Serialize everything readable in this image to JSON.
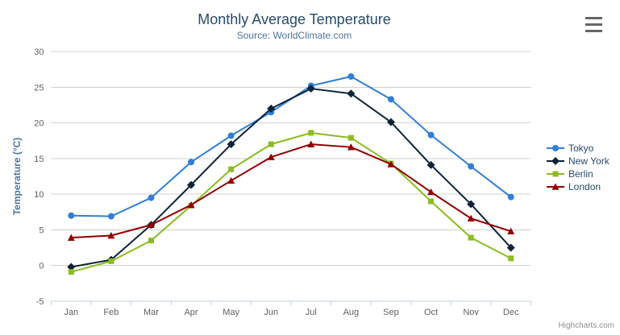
{
  "chart_data": {
    "type": "line",
    "title": "Monthly Average Temperature",
    "subtitle": "Source: WorldClimate.com",
    "xlabel": "",
    "ylabel": "Temperature (°C)",
    "categories": [
      "Jan",
      "Feb",
      "Mar",
      "Apr",
      "May",
      "Jun",
      "Jul",
      "Aug",
      "Sep",
      "Oct",
      "Nov",
      "Dec"
    ],
    "ylim": [
      -5,
      30
    ],
    "ytick_step": 5,
    "grid": true,
    "legend_position": "right",
    "series": [
      {
        "name": "Tokyo",
        "color": "#2f7ed8",
        "marker": "circle",
        "values": [
          7.0,
          6.9,
          9.5,
          14.5,
          18.2,
          21.5,
          25.2,
          26.5,
          23.3,
          18.3,
          13.9,
          9.6
        ]
      },
      {
        "name": "New York",
        "color": "#0d233a",
        "marker": "diamond",
        "values": [
          -0.2,
          0.8,
          5.7,
          11.3,
          17.0,
          22.0,
          24.8,
          24.1,
          20.1,
          14.1,
          8.6,
          2.5
        ]
      },
      {
        "name": "Berlin",
        "color": "#8bbc21",
        "marker": "square",
        "values": [
          -0.9,
          0.6,
          3.5,
          8.4,
          13.5,
          17.0,
          18.6,
          17.9,
          14.3,
          9.0,
          3.9,
          1.0
        ]
      },
      {
        "name": "London",
        "color": "#910000",
        "marker": "triangle",
        "values": [
          3.9,
          4.2,
          5.7,
          8.5,
          11.9,
          15.2,
          17.0,
          16.6,
          14.2,
          10.3,
          6.6,
          4.8
        ]
      }
    ]
  },
  "credits": {
    "label": "Highcharts.com"
  },
  "colors": {
    "title": "#274b6d",
    "subtitle": "#4d759e",
    "axis_title": "#4d759e",
    "axis_label": "#606060",
    "grid": "#d0d0d0",
    "axis_line": "#c0d0e0",
    "legend_text": "#274b6d",
    "credits": "#909090",
    "menu_icon": "#666666",
    "background": "#ffffff"
  }
}
